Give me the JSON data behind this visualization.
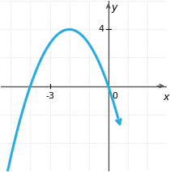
{
  "xlabel": "x",
  "ylabel": "y",
  "curve_color": "#29ABE2",
  "curve_linewidth": 2.2,
  "background_color": "#ffffff",
  "grid_color": "#c8c8c8",
  "axis_color": "#555555",
  "xlim": [
    -5.5,
    3
  ],
  "ylim": [
    -6,
    6
  ],
  "zero_label": "0",
  "xtick_label": "-3",
  "xtick_val": -3,
  "ytick_label": "4",
  "ytick_val": 4,
  "curve_a": -1,
  "curve_b": -4,
  "curve_c": 0,
  "figsize": [
    2.1,
    2.13
  ],
  "dpi": 100
}
